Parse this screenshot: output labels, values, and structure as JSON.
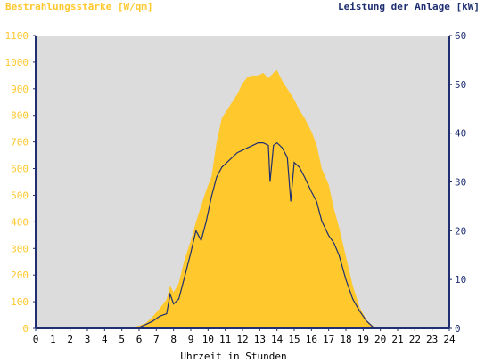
{
  "titles": {
    "left": "Bestrahlungsstärke [W/qm]",
    "right": "Leistung der Anlage [kW]",
    "x": "Uhrzeit in Stunden"
  },
  "colors": {
    "plot_bg": "#dcdcdc",
    "irradiance_fill": "#ffc82d",
    "power_line": "#1f2f72",
    "axis": "#1f2f72",
    "left_ticks": "#ffc82d",
    "right_ticks": "#1f2f72",
    "x_ticks": "#000000"
  },
  "chart_data": {
    "type": "area",
    "xlabel": "Uhrzeit in Stunden",
    "xlim": [
      0,
      24
    ],
    "x_ticks": [
      0,
      1,
      2,
      3,
      4,
      5,
      6,
      7,
      8,
      9,
      10,
      11,
      12,
      13,
      14,
      15,
      16,
      17,
      18,
      19,
      20,
      21,
      22,
      23,
      24
    ],
    "grid": false,
    "y_left": {
      "label": "Bestrahlungsstärke [W/qm]",
      "lim": [
        0,
        1100
      ],
      "ticks": [
        0,
        100,
        200,
        300,
        400,
        500,
        600,
        700,
        800,
        900,
        1000,
        1100
      ]
    },
    "y_right": {
      "label": "Leistung der Anlage [kW]",
      "lim": [
        0,
        60
      ],
      "ticks": [
        0,
        10,
        20,
        30,
        40,
        50,
        60
      ]
    },
    "series": [
      {
        "name": "Bestrahlungsstärke [W/qm]",
        "axis": "left",
        "style": "filled-area",
        "points": [
          [
            0,
            0
          ],
          [
            5.3,
            0
          ],
          [
            5.6,
            5
          ],
          [
            6.0,
            10
          ],
          [
            6.4,
            20
          ],
          [
            6.8,
            45
          ],
          [
            7.2,
            75
          ],
          [
            7.6,
            110
          ],
          [
            7.8,
            160
          ],
          [
            8.0,
            135
          ],
          [
            8.3,
            170
          ],
          [
            8.6,
            250
          ],
          [
            9.0,
            330
          ],
          [
            9.3,
            400
          ],
          [
            9.6,
            460
          ],
          [
            9.9,
            520
          ],
          [
            10.2,
            570
          ],
          [
            10.5,
            700
          ],
          [
            10.8,
            790
          ],
          [
            11.1,
            820
          ],
          [
            11.4,
            850
          ],
          [
            11.7,
            880
          ],
          [
            12.0,
            920
          ],
          [
            12.3,
            945
          ],
          [
            12.6,
            950
          ],
          [
            12.9,
            950
          ],
          [
            13.2,
            960
          ],
          [
            13.5,
            940
          ],
          [
            13.8,
            960
          ],
          [
            14.0,
            970
          ],
          [
            14.3,
            930
          ],
          [
            14.6,
            900
          ],
          [
            15.0,
            860
          ],
          [
            15.3,
            820
          ],
          [
            15.6,
            790
          ],
          [
            16.0,
            740
          ],
          [
            16.3,
            690
          ],
          [
            16.6,
            600
          ],
          [
            17.0,
            540
          ],
          [
            17.3,
            450
          ],
          [
            17.6,
            380
          ],
          [
            18.0,
            270
          ],
          [
            18.4,
            160
          ],
          [
            18.8,
            80
          ],
          [
            19.2,
            30
          ],
          [
            19.6,
            8
          ],
          [
            20.0,
            0
          ],
          [
            24,
            0
          ]
        ]
      },
      {
        "name": "Leistung der Anlage [kW]",
        "axis": "right",
        "style": "line",
        "points": [
          [
            0,
            0
          ],
          [
            5.6,
            0
          ],
          [
            6.0,
            0.2
          ],
          [
            6.4,
            0.8
          ],
          [
            6.8,
            1.5
          ],
          [
            7.2,
            2.5
          ],
          [
            7.6,
            3.0
          ],
          [
            7.8,
            7.0
          ],
          [
            8.0,
            5.0
          ],
          [
            8.3,
            6.0
          ],
          [
            8.6,
            10.0
          ],
          [
            9.0,
            15.5
          ],
          [
            9.3,
            20.0
          ],
          [
            9.6,
            18.0
          ],
          [
            9.9,
            22.0
          ],
          [
            10.2,
            27.0
          ],
          [
            10.5,
            31.0
          ],
          [
            10.8,
            33.0
          ],
          [
            11.1,
            34.0
          ],
          [
            11.4,
            35.0
          ],
          [
            11.7,
            36.0
          ],
          [
            12.0,
            36.5
          ],
          [
            12.3,
            37.0
          ],
          [
            12.6,
            37.5
          ],
          [
            12.9,
            38.0
          ],
          [
            13.2,
            38.0
          ],
          [
            13.5,
            37.5
          ],
          [
            13.6,
            30.0
          ],
          [
            13.8,
            37.5
          ],
          [
            14.0,
            38.0
          ],
          [
            14.3,
            37.0
          ],
          [
            14.6,
            35.0
          ],
          [
            14.8,
            26.0
          ],
          [
            15.0,
            34.0
          ],
          [
            15.3,
            33.0
          ],
          [
            15.6,
            31.0
          ],
          [
            16.0,
            28.0
          ],
          [
            16.3,
            26.0
          ],
          [
            16.6,
            22.0
          ],
          [
            17.0,
            19.0
          ],
          [
            17.3,
            17.5
          ],
          [
            17.6,
            15.0
          ],
          [
            18.0,
            10.0
          ],
          [
            18.4,
            6.0
          ],
          [
            18.8,
            3.5
          ],
          [
            19.2,
            1.5
          ],
          [
            19.6,
            0.2
          ],
          [
            20.0,
            0
          ],
          [
            24,
            0
          ]
        ]
      }
    ]
  }
}
